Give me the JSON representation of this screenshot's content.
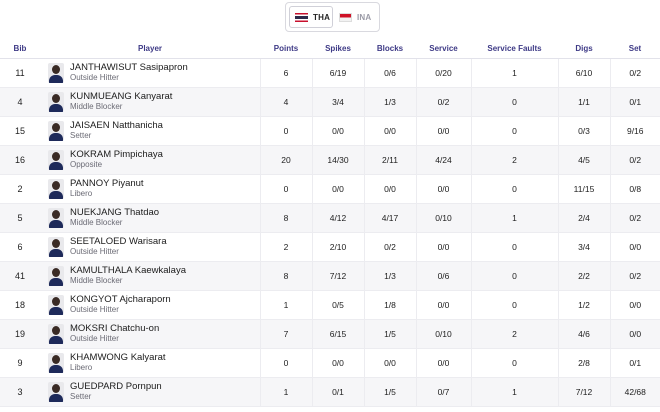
{
  "teams": {
    "home": {
      "code": "THA",
      "flag_icon": "thailand-flag-icon"
    },
    "away": {
      "code": "INA",
      "flag_icon": "indonesia-flag-icon"
    }
  },
  "table": {
    "headers": [
      "Bib",
      "Player",
      "Points",
      "Spikes",
      "Blocks",
      "Service",
      "Service Faults",
      "Digs",
      "Set"
    ],
    "rows": [
      {
        "bib": "11",
        "name": "JANTHAWISUT Sasipapron",
        "position": "Outside Hitter",
        "points": "6",
        "spikes": "6/19",
        "blocks": "0/6",
        "service": "0/20",
        "faults": "1",
        "digs": "6/10",
        "set": "0/2"
      },
      {
        "bib": "4",
        "name": "KUNMUEANG Kanyarat",
        "position": "Middle Blocker",
        "points": "4",
        "spikes": "3/4",
        "blocks": "1/3",
        "service": "0/2",
        "faults": "0",
        "digs": "1/1",
        "set": "0/1"
      },
      {
        "bib": "15",
        "name": "JAISAEN Natthanicha",
        "position": "Setter",
        "points": "0",
        "spikes": "0/0",
        "blocks": "0/0",
        "service": "0/0",
        "faults": "0",
        "digs": "0/3",
        "set": "9/16"
      },
      {
        "bib": "16",
        "name": "KOKRAM Pimpichaya",
        "position": "Opposite",
        "points": "20",
        "spikes": "14/30",
        "blocks": "2/11",
        "service": "4/24",
        "faults": "2",
        "digs": "4/5",
        "set": "0/2"
      },
      {
        "bib": "2",
        "name": "PANNOY Piyanut",
        "position": "Libero",
        "points": "0",
        "spikes": "0/0",
        "blocks": "0/0",
        "service": "0/0",
        "faults": "0",
        "digs": "11/15",
        "set": "0/8"
      },
      {
        "bib": "5",
        "name": "NUEKJANG Thatdao",
        "position": "Middle Blocker",
        "points": "8",
        "spikes": "4/12",
        "blocks": "4/17",
        "service": "0/10",
        "faults": "1",
        "digs": "2/4",
        "set": "0/2"
      },
      {
        "bib": "6",
        "name": "SEETALOED Warisara",
        "position": "Outside Hitter",
        "points": "2",
        "spikes": "2/10",
        "blocks": "0/2",
        "service": "0/0",
        "faults": "0",
        "digs": "3/4",
        "set": "0/0"
      },
      {
        "bib": "41",
        "name": "KAMULTHALA Kaewkalaya",
        "position": "Middle Blocker",
        "points": "8",
        "spikes": "7/12",
        "blocks": "1/3",
        "service": "0/6",
        "faults": "0",
        "digs": "2/2",
        "set": "0/2"
      },
      {
        "bib": "18",
        "name": "KONGYOT Ajcharaporn",
        "position": "Outside Hitter",
        "points": "1",
        "spikes": "0/5",
        "blocks": "1/8",
        "service": "0/0",
        "faults": "0",
        "digs": "1/2",
        "set": "0/0"
      },
      {
        "bib": "19",
        "name": "MOKSRI Chatchu-on",
        "position": "Outside Hitter",
        "points": "7",
        "spikes": "6/15",
        "blocks": "1/5",
        "service": "0/10",
        "faults": "2",
        "digs": "4/6",
        "set": "0/0"
      },
      {
        "bib": "9",
        "name": "KHAMWONG Kalyarat",
        "position": "Libero",
        "points": "0",
        "spikes": "0/0",
        "blocks": "0/0",
        "service": "0/0",
        "faults": "0",
        "digs": "2/8",
        "set": "0/1"
      },
      {
        "bib": "3",
        "name": "GUEDPARD Pornpun",
        "position": "Setter",
        "points": "1",
        "spikes": "0/1",
        "blocks": "1/5",
        "service": "0/7",
        "faults": "1",
        "digs": "7/12",
        "set": "42/68"
      }
    ]
  },
  "colors": {
    "header_text": "#3e3a86",
    "stripe": "#f6f6f8",
    "border": "#ececf0"
  }
}
